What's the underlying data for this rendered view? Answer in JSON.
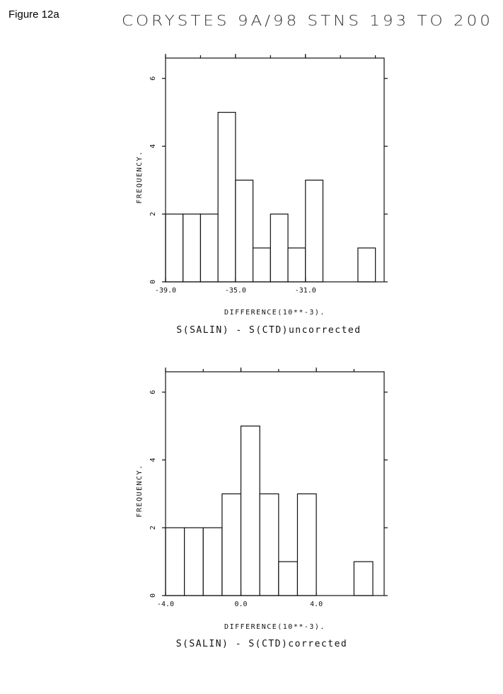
{
  "figure_label": "Figure 12a",
  "figure_title": "CORYSTES 9A/98 STNS 193 TO 200",
  "chart_data": [
    {
      "type": "bar",
      "title": "",
      "xlabel": "DIFFERENCE(10**-3).",
      "ylabel": "FREQUENCY.",
      "caption": "S(SALIN) - S(CTD)uncorrected",
      "xlim": [
        -39.0,
        -26.5
      ],
      "ylim": [
        0,
        6.6
      ],
      "bin_width": 1.0,
      "bin_starts": [
        -39.0,
        -38.0,
        -37.0,
        -36.0,
        -35.0,
        -34.0,
        -33.0,
        -32.0,
        -31.0,
        -30.0,
        -29.0,
        -28.0
      ],
      "values": [
        2,
        2,
        2,
        5,
        3,
        1,
        2,
        1,
        3,
        0,
        0,
        1
      ],
      "x_ticks": [
        -39.0,
        -35.0,
        -31.0
      ],
      "x_tick_labels": [
        "-39.0",
        "-35.0",
        "-31.0"
      ],
      "y_ticks": [
        0,
        2,
        4,
        6
      ],
      "y_tick_labels": [
        "0",
        "2",
        "4",
        "6"
      ],
      "grid": false
    },
    {
      "type": "bar",
      "title": "",
      "xlabel": "DIFFERENCE(10**-3).",
      "ylabel": "FREQUENCY.",
      "caption": "S(SALIN) - S(CTD)corrected",
      "xlim": [
        -4.0,
        7.6
      ],
      "ylim": [
        0,
        6.6
      ],
      "bin_width": 1.0,
      "bin_starts": [
        -4.0,
        -3.0,
        -2.0,
        -1.0,
        0.0,
        1.0,
        2.0,
        3.0,
        4.0,
        5.0,
        6.0
      ],
      "values": [
        2,
        2,
        2,
        3,
        5,
        3,
        1,
        3,
        0,
        0,
        1
      ],
      "x_ticks": [
        -4.0,
        0.0,
        4.0
      ],
      "x_tick_labels": [
        "-4.0",
        "0.0",
        "4.0"
      ],
      "y_ticks": [
        0,
        2,
        4,
        6
      ],
      "y_tick_labels": [
        "0",
        "2",
        "4",
        "6"
      ],
      "grid": false
    }
  ]
}
